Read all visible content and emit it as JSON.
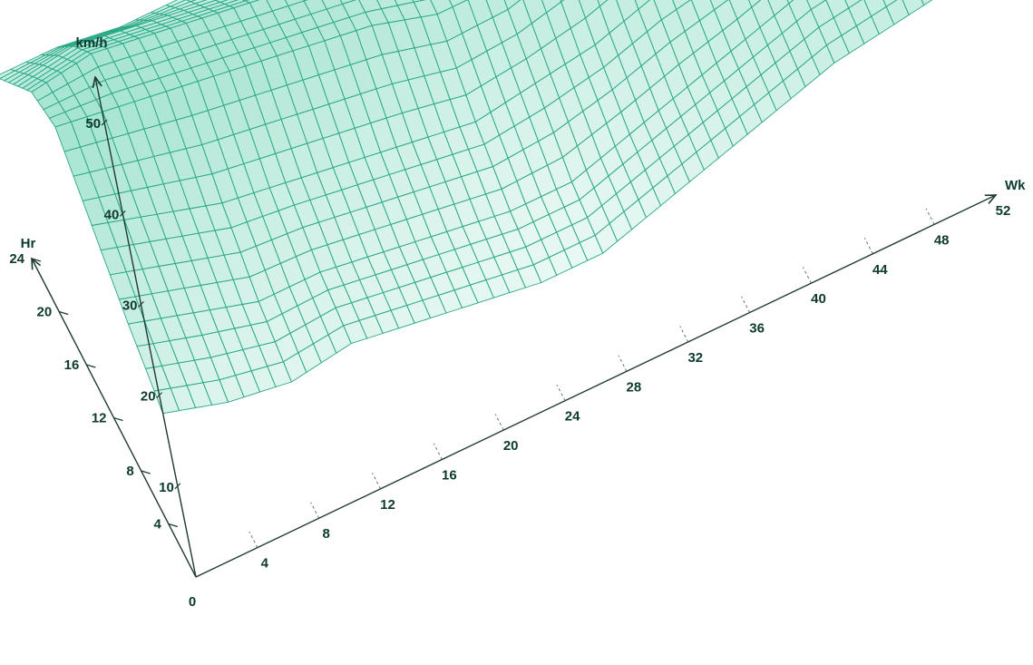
{
  "chart_data": {
    "type": "surface",
    "title": "",
    "x_axis": {
      "label": "Wk",
      "range": [
        0,
        52
      ],
      "ticks": [
        0,
        4,
        8,
        12,
        16,
        20,
        24,
        28,
        32,
        36,
        40,
        44,
        48,
        52
      ]
    },
    "y_axis": {
      "label": "Hr",
      "range": [
        0,
        24
      ],
      "ticks": [
        4,
        8,
        12,
        16,
        20,
        24
      ]
    },
    "z_axis": {
      "label": "km/h",
      "range": [
        0,
        55
      ],
      "ticks": [
        10,
        20,
        30,
        40,
        50
      ]
    },
    "grid": "wireframe",
    "colors": {
      "surface_fill": "#62cfae",
      "surface_line": "#2aa886",
      "axis": "#1f3a33",
      "label": "#0d3a2e"
    },
    "weeks": [
      0,
      4,
      8,
      12,
      16,
      20,
      24,
      28,
      32,
      36,
      40,
      44,
      48,
      52
    ],
    "hours": [
      0,
      4,
      8,
      12,
      16,
      20,
      24
    ],
    "z_values": [
      [
        18,
        16,
        15,
        16,
        15,
        14,
        13,
        13,
        15,
        17,
        19,
        21,
        22,
        23
      ],
      [
        22,
        20,
        18,
        18,
        17,
        16,
        15,
        15,
        17,
        19,
        21,
        23,
        24,
        25
      ],
      [
        27,
        25,
        23,
        22,
        21,
        20,
        19,
        20,
        21,
        23,
        24,
        26,
        27,
        28
      ],
      [
        32,
        31,
        30,
        29,
        28,
        27,
        25,
        25,
        27,
        29,
        30,
        31,
        31,
        31
      ],
      [
        30,
        31,
        30,
        29,
        28,
        27,
        26,
        27,
        29,
        31,
        32,
        32,
        31,
        30
      ],
      [
        25,
        26,
        25,
        24,
        23,
        22,
        22,
        23,
        25,
        27,
        28,
        28,
        27,
        26
      ],
      [
        20,
        20,
        19,
        19,
        18,
        18,
        18,
        19,
        21,
        22,
        23,
        23,
        22,
        21
      ]
    ]
  }
}
